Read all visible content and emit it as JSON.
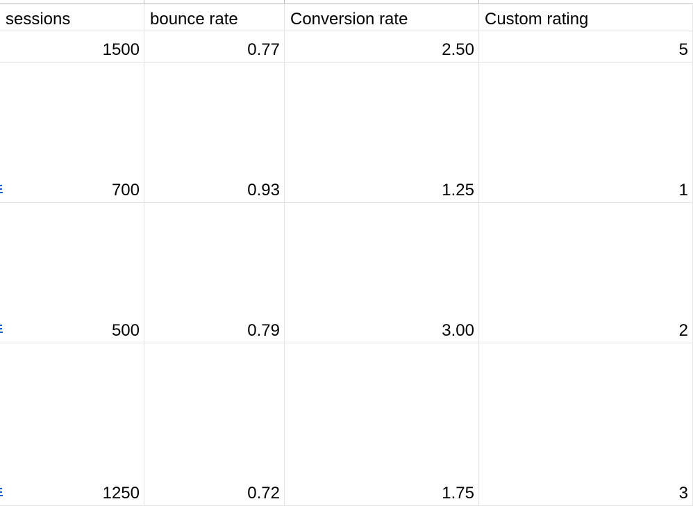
{
  "columns": [
    "sessions",
    "bounce rate",
    "Conversion rate",
    "Custom rating"
  ],
  "rows": [
    [
      "1500",
      "0.77",
      "2.50",
      "5"
    ],
    [
      "700",
      "0.93",
      "1.25",
      "1"
    ],
    [
      "500",
      "0.79",
      "3.00",
      "2"
    ],
    [
      "1250",
      "0.72",
      "1.75",
      "3"
    ]
  ],
  "colors": {
    "gridline": "#e2e3e3",
    "frozen_border": "#c0c0c0",
    "link_fragment": "#1a5fd0"
  }
}
